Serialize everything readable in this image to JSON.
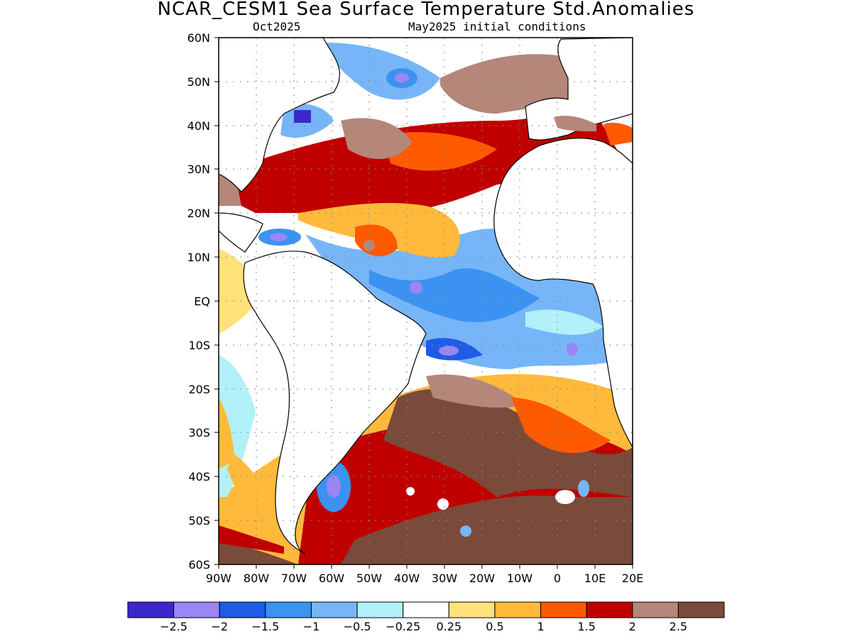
{
  "title": "NCAR_CESM1 Sea Surface Temperature Std.Anomalies",
  "subtitle_left": "Oct2025",
  "subtitle_right": "May2025 initial conditions",
  "map": {
    "lat_labels": [
      "60N",
      "50N",
      "40N",
      "30N",
      "20N",
      "10N",
      "EQ",
      "10S",
      "20S",
      "30S",
      "40S",
      "50S",
      "60S"
    ],
    "lon_labels": [
      "90W",
      "80W",
      "70W",
      "60W",
      "50W",
      "40W",
      "30W",
      "20W",
      "10W",
      "0",
      "10E",
      "20E"
    ]
  },
  "colorbar": {
    "colors": [
      "#3c28c8",
      "#9a86f4",
      "#1e5ce6",
      "#3b92f0",
      "#76b6f8",
      "#b2f0fa",
      "#ffffff",
      "#ffe27a",
      "#ffba3c",
      "#ff5a00",
      "#c00000",
      "#b4877a",
      "#7a4a3a"
    ],
    "labels": [
      "-2.5",
      "-2",
      "-1.5",
      "-1",
      "-0.5",
      "-0.25",
      "0.25",
      "0.5",
      "1",
      "1.5",
      "2",
      "2.5"
    ]
  }
}
